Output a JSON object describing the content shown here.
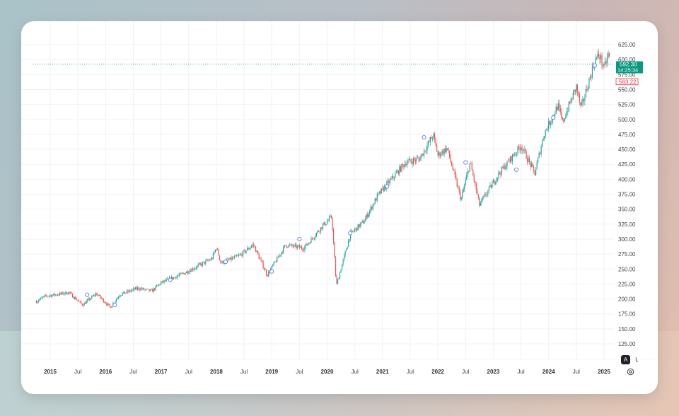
{
  "chart_data": {
    "type": "candlestick",
    "title": "",
    "xlabel": "",
    "ylabel": "",
    "ylim": [
      112,
      632
    ],
    "y_ticks": [
      "625.00",
      "600.00",
      "575.00",
      "550.00",
      "525.00",
      "500.00",
      "475.00",
      "450.00",
      "425.00",
      "400.00",
      "375.00",
      "350.00",
      "325.00",
      "300.00",
      "275.00",
      "250.00",
      "225.00",
      "200.00",
      "175.00",
      "150.00",
      "125.00"
    ],
    "x_ticks": [
      {
        "label": "2015",
        "bold": true
      },
      {
        "label": "Jul",
        "bold": false
      },
      {
        "label": "2016",
        "bold": true
      },
      {
        "label": "Jul",
        "bold": false
      },
      {
        "label": "2017",
        "bold": true
      },
      {
        "label": "Jul",
        "bold": false
      },
      {
        "label": "2018",
        "bold": true
      },
      {
        "label": "Jul",
        "bold": false
      },
      {
        "label": "2019",
        "bold": true
      },
      {
        "label": "Jul",
        "bold": false
      },
      {
        "label": "2020",
        "bold": true
      },
      {
        "label": "Jul",
        "bold": false
      },
      {
        "label": "2021",
        "bold": true
      },
      {
        "label": "Jul",
        "bold": false
      },
      {
        "label": "2022",
        "bold": true
      },
      {
        "label": "Jul",
        "bold": false
      },
      {
        "label": "2023",
        "bold": true
      },
      {
        "label": "Jul",
        "bold": false
      },
      {
        "label": "2024",
        "bold": true
      },
      {
        "label": "Jul",
        "bold": false
      },
      {
        "label": "2025",
        "bold": true
      }
    ],
    "x_range": [
      "2014-10",
      "2025-03"
    ],
    "grid": true,
    "legend": null,
    "up_color": "#26a69a",
    "down_color": "#ef5350",
    "series_close_keypoints": [
      {
        "x": "2014-10",
        "close": 196
      },
      {
        "x": "2014-12",
        "close": 205
      },
      {
        "x": "2015-03",
        "close": 208
      },
      {
        "x": "2015-05",
        "close": 211
      },
      {
        "x": "2015-08",
        "close": 190
      },
      {
        "x": "2015-11",
        "close": 209
      },
      {
        "x": "2016-02",
        "close": 186
      },
      {
        "x": "2016-04",
        "close": 207
      },
      {
        "x": "2016-08",
        "close": 218
      },
      {
        "x": "2016-11",
        "close": 213
      },
      {
        "x": "2017-01",
        "close": 227
      },
      {
        "x": "2017-06",
        "close": 243
      },
      {
        "x": "2017-12",
        "close": 267
      },
      {
        "x": "2018-01",
        "close": 286
      },
      {
        "x": "2018-02",
        "close": 260
      },
      {
        "x": "2018-06",
        "close": 272
      },
      {
        "x": "2018-09",
        "close": 291
      },
      {
        "x": "2018-12",
        "close": 240
      },
      {
        "x": "2019-04",
        "close": 290
      },
      {
        "x": "2019-08",
        "close": 285
      },
      {
        "x": "2019-12",
        "close": 322
      },
      {
        "x": "2020-02",
        "close": 337
      },
      {
        "x": "2020-03",
        "close": 222
      },
      {
        "x": "2020-06",
        "close": 308
      },
      {
        "x": "2020-09",
        "close": 330
      },
      {
        "x": "2020-12",
        "close": 373
      },
      {
        "x": "2021-06",
        "close": 428
      },
      {
        "x": "2021-09",
        "close": 434
      },
      {
        "x": "2021-12",
        "close": 474
      },
      {
        "x": "2022-01",
        "close": 440
      },
      {
        "x": "2022-03",
        "close": 452
      },
      {
        "x": "2022-06",
        "close": 366
      },
      {
        "x": "2022-08",
        "close": 428
      },
      {
        "x": "2022-10",
        "close": 357
      },
      {
        "x": "2022-12",
        "close": 382
      },
      {
        "x": "2023-02",
        "close": 407
      },
      {
        "x": "2023-07",
        "close": 456
      },
      {
        "x": "2023-10",
        "close": 410
      },
      {
        "x": "2023-12",
        "close": 476
      },
      {
        "x": "2024-03",
        "close": 523
      },
      {
        "x": "2024-04",
        "close": 495
      },
      {
        "x": "2024-07",
        "close": 555
      },
      {
        "x": "2024-08",
        "close": 517
      },
      {
        "x": "2024-11",
        "close": 598
      },
      {
        "x": "2024-12",
        "close": 608
      },
      {
        "x": "2025-01",
        "close": 585
      },
      {
        "x": "2025-02",
        "close": 610
      },
      {
        "x": "2025-03",
        "close": 563
      }
    ],
    "price_line": {
      "value": 592.3,
      "label": "592.30",
      "countdown": "14:25:34",
      "color": "#089981"
    },
    "last_price": {
      "value": 563.22,
      "label": "563.22",
      "color": "#f23645"
    },
    "event_markers": [
      "dividend-circle markers along series (blue outlined circles)"
    ]
  },
  "controls": {
    "auto_scale_label": "A",
    "log_scale_label": "L",
    "settings_icon": "gear-icon"
  }
}
